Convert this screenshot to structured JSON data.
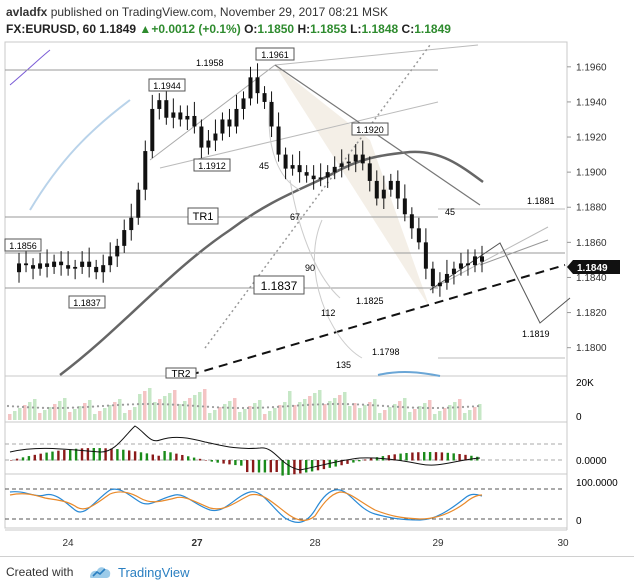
{
  "header": {
    "author": "avladfx",
    "published_text": "published on TradingView.com, November 29, 2017 08:21 MSK",
    "symbol": "FX:EURUSD, 60",
    "last": "1.1849",
    "change": "+0.0012 (+0.1%)",
    "open_label": "O:",
    "open": "1.1850",
    "high_label": "H:",
    "high": "1.1853",
    "low_label": "L:",
    "low": "1.1848",
    "close_label": "C:",
    "close": "1.1849"
  },
  "footer": {
    "created_with": "Created with",
    "brand": "TradingView"
  },
  "chart_data": {
    "type": "candlestick",
    "price_axis": {
      "range": [
        1.1785,
        1.1973
      ],
      "ticks": [
        "1.1960",
        "1.1940",
        "1.1920",
        "1.1900",
        "1.1880",
        "1.1860",
        "1.1840",
        "1.1820",
        "1.1800"
      ],
      "last_price_label": "1.1849"
    },
    "time_axis": {
      "ticks": [
        "24",
        "27",
        "28",
        "29",
        "30"
      ]
    },
    "price_labels": [
      "1.1961",
      "1.1958",
      "1.1944",
      "1.1912",
      "1.1920",
      "1.1881",
      "1.1856",
      "1.1837",
      "1.1825",
      "1.1819",
      "1.1798"
    ],
    "line_labels": {
      "tr1": "TR1",
      "tr2": "TR2",
      "level": "1.1837"
    },
    "fan_angles": [
      "45",
      "67",
      "45",
      "90",
      "112",
      "135"
    ],
    "volume_axis": [
      "20K",
      "0"
    ],
    "oscillator_axis": [
      "0.0000"
    ],
    "stochastic_axis": [
      "100.0000",
      "0"
    ],
    "price_series": [
      1.1843,
      1.1848,
      1.1847,
      1.1845,
      1.1848,
      1.1846,
      1.1849,
      1.1847,
      1.1845,
      1.1846,
      1.1849,
      1.1846,
      1.1843,
      1.1847,
      1.1852,
      1.1858,
      1.1867,
      1.1874,
      1.189,
      1.1912,
      1.1936,
      1.1941,
      1.1931,
      1.1934,
      1.193,
      1.1932,
      1.1926,
      1.1914,
      1.1918,
      1.1922,
      1.193,
      1.1926,
      1.1936,
      1.1942,
      1.1954,
      1.1945,
      1.194,
      1.1926,
      1.191,
      1.1902,
      1.1904,
      1.19,
      1.1898,
      1.1896,
      1.1897,
      1.19,
      1.1903,
      1.1905,
      1.1906,
      1.191,
      1.1905,
      1.1895,
      1.1885,
      1.189,
      1.1895,
      1.1885,
      1.1876,
      1.1868,
      1.186,
      1.1845,
      1.1835,
      1.1837,
      1.1842,
      1.1845,
      1.1848,
      1.1847,
      1.1852,
      1.1849
    ]
  }
}
